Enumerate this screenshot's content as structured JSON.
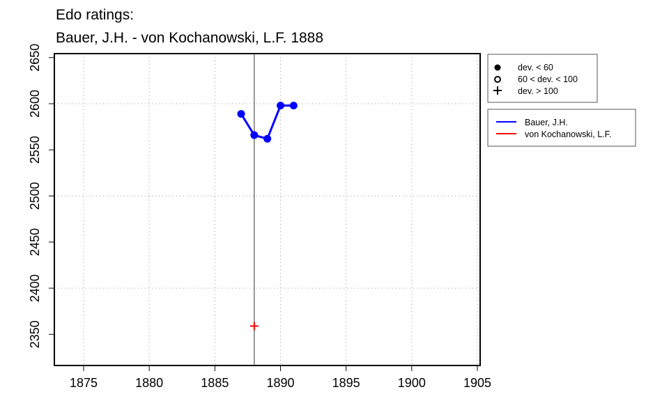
{
  "chart_data": {
    "type": "line",
    "title": "Edo ratings:",
    "subtitle": "Bauer, J.H. - von Kochanowski, L.F. 1888",
    "xlim": [
      1873,
      1905
    ],
    "ylim": [
      2317,
      2652
    ],
    "xticks": [
      1875,
      1880,
      1885,
      1890,
      1895,
      1900,
      1905
    ],
    "yticks": [
      2350,
      2400,
      2450,
      2500,
      2550,
      2600,
      2650
    ],
    "grid_x": [
      1875,
      1880,
      1885,
      1890,
      1895,
      1900,
      1905
    ],
    "grid_y": [
      2400,
      2500,
      2600
    ],
    "vline": 1888,
    "series": [
      {
        "name": "Bauer, J.H.",
        "color": "#0000ff",
        "x": [
          1887,
          1888,
          1889,
          1890,
          1891
        ],
        "y": [
          2589,
          2566,
          2562,
          2598,
          2598
        ],
        "marker": "dot"
      },
      {
        "name": "von Kochanowski, L.F.",
        "color": "#ff0000",
        "x": [
          1888
        ],
        "y": [
          2359
        ],
        "marker": "plus"
      }
    ],
    "marker_legend": [
      {
        "symbol": "dot",
        "label": "dev. < 60"
      },
      {
        "symbol": "circle",
        "label": "60 < dev. < 100"
      },
      {
        "symbol": "plus",
        "label": "dev. > 100"
      }
    ],
    "legend_position": "right"
  }
}
